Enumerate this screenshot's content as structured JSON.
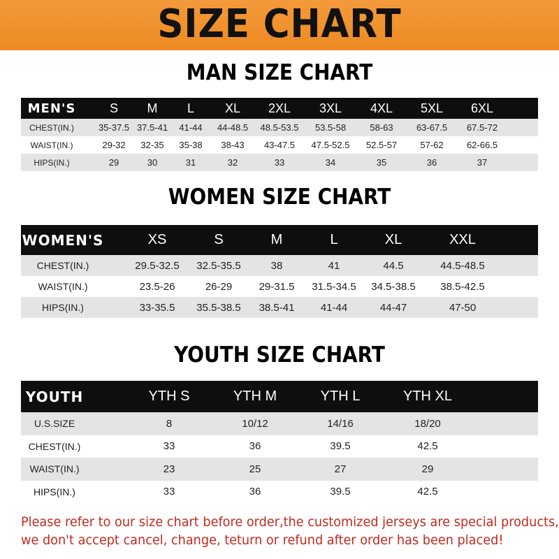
{
  "banner": {
    "title": "SIZE CHART",
    "color": "#f0901f"
  },
  "men": {
    "title": "MAN SIZE CHART",
    "header": [
      "MEN'S",
      "S",
      "M",
      "L",
      "XL",
      "2XL",
      "3XL",
      "4XL",
      "5XL",
      "6XL"
    ],
    "rows": [
      [
        "CHEST(IN.)",
        "35-37.5",
        "37.5-41",
        "41-44",
        "44-48.5",
        "48.5-53.5",
        "53.5-58",
        "58-63",
        "63-67.5",
        "67.5-72"
      ],
      [
        "WAIST(IN.)",
        "29-32",
        "32-35",
        "35-38",
        "38-43",
        "43-47.5",
        "47.5-52.5",
        "52.5-57",
        "57-62",
        "62-66.5"
      ],
      [
        "HIPS(IN.)",
        "29",
        "30",
        "31",
        "32",
        "33",
        "34",
        "35",
        "36",
        "37"
      ]
    ]
  },
  "women": {
    "title": "WOMEN SIZE CHART",
    "header": [
      "WOMEN'S",
      "XS",
      "S",
      "M",
      "L",
      "XL",
      "XXL"
    ],
    "rows": [
      [
        "CHEST(IN.)",
        "29.5-32.5",
        "32.5-35.5",
        "38",
        "41",
        "44.5",
        "44.5-48.5"
      ],
      [
        "WAIST(IN.)",
        "23.5-26",
        "26-29",
        "29-31.5",
        "31.5-34.5",
        "34.5-38.5",
        "38.5-42.5"
      ],
      [
        "HIPS(IN.)",
        "33-35.5",
        "35.5-38.5",
        "38.5-41",
        "41-44",
        "44-47",
        "47-50"
      ]
    ]
  },
  "youth": {
    "title": "YOUTH SIZE CHART",
    "header": [
      "YOUTH",
      "YTH S",
      "YTH M",
      "YTH L",
      "YTH XL"
    ],
    "rows": [
      [
        "U.S.SIZE",
        "8",
        "10/12",
        "14/16",
        "18/20"
      ],
      [
        "CHEST(IN.)",
        "33",
        "36",
        "39.5",
        "42.5"
      ],
      [
        "WAIST(IN.)",
        "23",
        "25",
        "27",
        "29"
      ],
      [
        "HIPS(IN.)",
        "33",
        "36",
        "39.5",
        "42.5"
      ]
    ]
  },
  "footer": {
    "line1": "Please refer to our size chart before order,the customized jerseys are special products,",
    "line2": "we don't accept cancel, change, teturn or refund after order has been placed!",
    "color": "#c3291f"
  }
}
